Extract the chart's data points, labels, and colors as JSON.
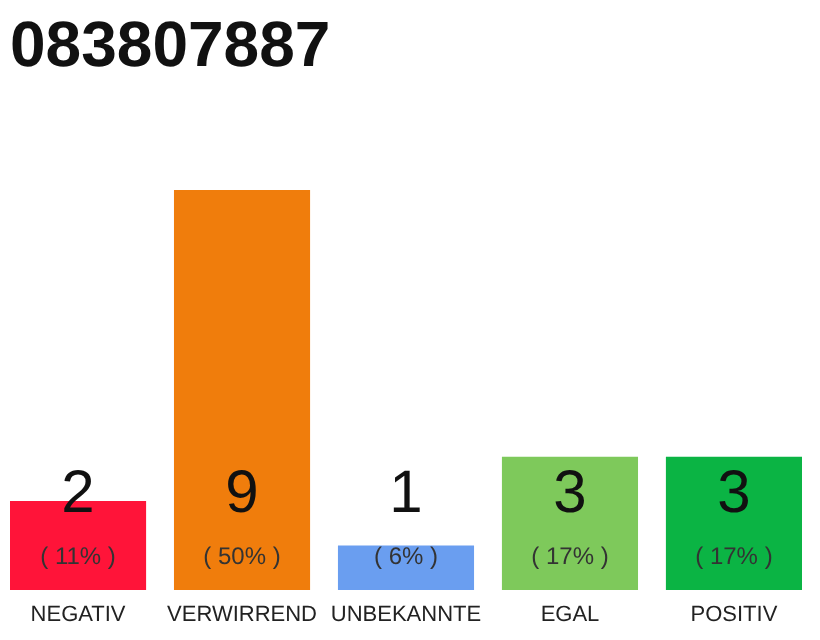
{
  "chart_data": {
    "type": "bar",
    "title": "083807887",
    "categories": [
      "NEGATIV",
      "VERWIRREND",
      "UNBEKANNTE",
      "EGAL",
      "POSITIV"
    ],
    "values": [
      2,
      9,
      1,
      3,
      3
    ],
    "colors": [
      "#ff1439",
      "#f07d0c",
      "#6a9ef0",
      "#7ec95b",
      "#0bb444"
    ],
    "data_labels": true,
    "annotations": [
      "( 11% )",
      "( 50% )",
      "( 6% )",
      "( 17% )",
      "( 17% )"
    ]
  }
}
